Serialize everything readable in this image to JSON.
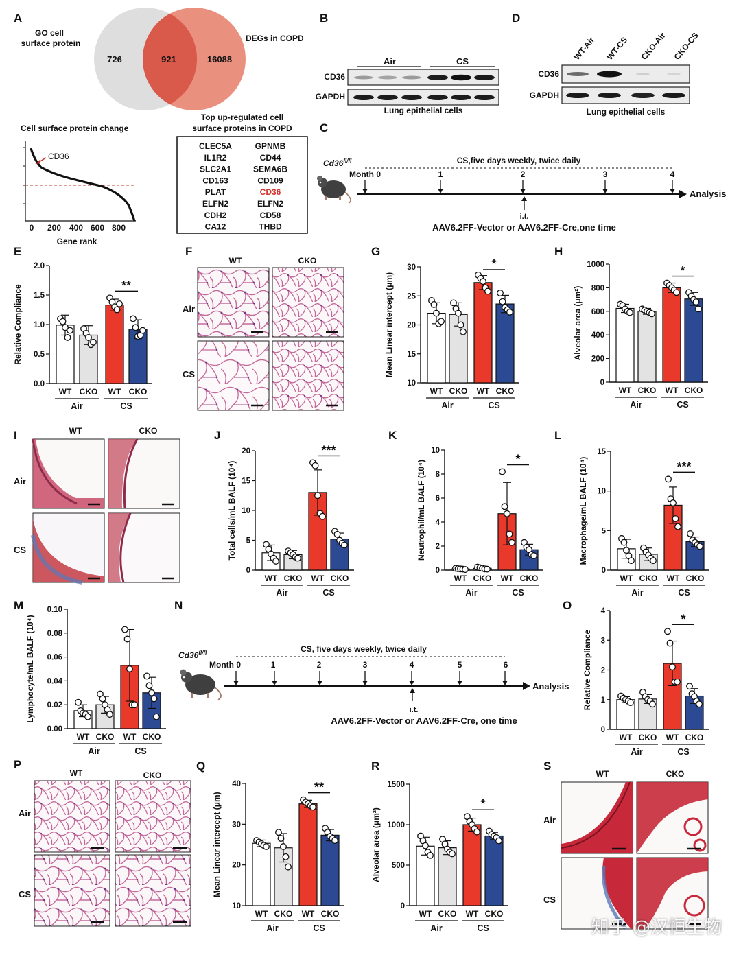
{
  "panel_letters": [
    "A",
    "B",
    "C",
    "D",
    "E",
    "F",
    "G",
    "H",
    "I",
    "J",
    "K",
    "L",
    "M",
    "N",
    "O",
    "P",
    "Q",
    "R",
    "S"
  ],
  "colors": {
    "wt_air": "#ffffff",
    "cko_air": "#e3e3e3",
    "wt_cs": "#e8392b",
    "cko_cs": "#2c4a94",
    "venn_left": "#dedede",
    "venn_right": "#e98a78",
    "venn_mid": "#d9594b",
    "he_pink": "#c46a9a",
    "masson_red": "#c53b44",
    "masson_blue": "#5a79b8"
  },
  "venn": {
    "left_label": "GO cell\nsurface protein",
    "right_label": "DEGs in COPD",
    "left_only": "726",
    "overlap": "921",
    "right_only": "16088"
  },
  "rank_plot": {
    "title": "Cell surface protein change",
    "callout": "CD36",
    "xlabel": "Gene rank",
    "xticks": [
      "0",
      "200",
      "400",
      "600",
      "800"
    ]
  },
  "gene_table": {
    "title_line1": "Top up-regulated cell",
    "title_line2": "surface proteins in COPD",
    "col1": [
      "CLEC5A",
      "IL1R2",
      "SLC2A1",
      "CD163",
      "PLAT",
      "ELFN2",
      "CDH2",
      "CA12"
    ],
    "col2": [
      "GPNMB",
      "CD44",
      "SEMA6B",
      "CD109",
      "CD36",
      "ELFN2",
      "CD58",
      "THBD"
    ],
    "highlight": "CD36"
  },
  "blot_b": {
    "groups": [
      "Air",
      "CS"
    ],
    "rows": [
      "CD36",
      "GAPDH"
    ],
    "caption": "Lung epithelial cells"
  },
  "blot_d": {
    "lanes": [
      "WT-Air",
      "WT-CS",
      "CKO-Air",
      "CKO-CS"
    ],
    "rows": [
      "CD36",
      "GAPDH"
    ],
    "caption": "Lung epithelial cells"
  },
  "timeline_c": {
    "strain": "Cd36",
    "strain_sup": "fl/fl",
    "title": "CS,five days weekly, twice daily",
    "start": "Month 0",
    "months": [
      "1",
      "2",
      "3",
      "4"
    ],
    "end": "Analysis",
    "route": "i.t.",
    "treatment": "AAV6.2FF-Vector or AAV6.2FF-Cre,one time"
  },
  "timeline_n": {
    "strain": "Cd36",
    "strain_sup": "fl/fl",
    "title": "CS, five days weekly, twice daily",
    "start": "Month 0",
    "months": [
      "1",
      "2",
      "3",
      "4",
      "5",
      "6"
    ],
    "end": "Analysis",
    "route": "i.t.",
    "treatment": "AAV6.2FF-Vector or AAV6.2FF-Cre, one time"
  },
  "micro_labels": {
    "cols": [
      "WT",
      "CKO"
    ],
    "rows": [
      "Air",
      "CS"
    ]
  },
  "group_axis": {
    "bars": [
      "WT",
      "CKO",
      "WT",
      "CKO"
    ],
    "groups": [
      "Air",
      "CS"
    ]
  },
  "chart_data": [
    {
      "panel": "E",
      "type": "bar",
      "ylabel": "Relative Compliance",
      "ylim": [
        0,
        2.0
      ],
      "yticks": [
        0.0,
        0.5,
        1.0,
        1.5,
        2.0
      ],
      "tick_decimals": 1,
      "categories": [
        "WT Air",
        "CKO Air",
        "WT CS",
        "CKO CS"
      ],
      "values": [
        0.99,
        0.82,
        1.33,
        0.92
      ],
      "errors": [
        0.17,
        0.16,
        0.1,
        0.16
      ],
      "points": [
        [
          1.1,
          1.05,
          0.95,
          0.78,
          0.9
        ],
        [
          0.93,
          0.85,
          0.78,
          0.66,
          0.7
        ],
        [
          1.45,
          1.38,
          1.3,
          1.25,
          1.35
        ],
        [
          1.1,
          0.95,
          0.8,
          0.82,
          0.9
        ]
      ],
      "significance": "**"
    },
    {
      "panel": "G",
      "type": "bar",
      "ylabel": "Mean Linear intercept (μm)",
      "ylim": [
        10,
        30
      ],
      "yticks": [
        10,
        15,
        20,
        25,
        30
      ],
      "tick_decimals": 0,
      "categories": [
        "WT Air",
        "CKO Air",
        "WT CS",
        "CKO CS"
      ],
      "values": [
        22.0,
        21.8,
        27.3,
        23.6
      ],
      "errors": [
        1.8,
        2.0,
        1.2,
        1.5
      ],
      "points": [
        [
          24.2,
          23.5,
          22.0,
          20.2,
          20.6
        ],
        [
          23.8,
          22.8,
          22.0,
          20.0,
          18.8
        ],
        [
          28.6,
          28.0,
          27.5,
          26.4,
          25.8
        ],
        [
          25.5,
          24.0,
          23.0,
          22.6,
          22.2
        ]
      ],
      "significance": "*"
    },
    {
      "panel": "H",
      "type": "bar",
      "ylabel": "Alveolar area (μm²)",
      "ylim": [
        0,
        1000
      ],
      "yticks": [
        0,
        200,
        400,
        600,
        800,
        1000
      ],
      "tick_decimals": 0,
      "categories": [
        "WT Air",
        "CKO Air",
        "WT CS",
        "CKO CS"
      ],
      "values": [
        625,
        600,
        800,
        705
      ],
      "errors": [
        35,
        25,
        40,
        55
      ],
      "points": [
        [
          660,
          650,
          620,
          600,
          590
        ],
        [
          620,
          610,
          600,
          590,
          580
        ],
        [
          840,
          820,
          800,
          780,
          760
        ],
        [
          760,
          730,
          700,
          680,
          620
        ]
      ],
      "significance": "*"
    },
    {
      "panel": "J",
      "type": "bar",
      "ylabel": "Total cells/mL BALF (10⁴)",
      "ylim": [
        0,
        20
      ],
      "yticks": [
        0,
        5,
        10,
        15,
        20
      ],
      "tick_decimals": 0,
      "categories": [
        "WT Air",
        "CKO Air",
        "WT CS",
        "CKO CS"
      ],
      "values": [
        2.9,
        2.6,
        13.0,
        5.2
      ],
      "errors": [
        1.3,
        0.7,
        3.8,
        1.0
      ],
      "points": [
        [
          4.3,
          3.5,
          2.7,
          2.0,
          1.5
        ],
        [
          3.2,
          2.9,
          2.6,
          2.2,
          2.0
        ],
        [
          18.0,
          17.5,
          12.5,
          9.5,
          9.0
        ],
        [
          6.5,
          6.0,
          5.0,
          4.5,
          4.2
        ]
      ],
      "significance": "***"
    },
    {
      "panel": "K",
      "type": "bar",
      "ylabel": "Neutrophil/mL BALF (10⁴)",
      "ylim": [
        0,
        10
      ],
      "yticks": [
        0,
        2,
        4,
        6,
        8,
        10
      ],
      "tick_decimals": 0,
      "categories": [
        "WT Air",
        "CKO Air",
        "WT CS",
        "CKO CS"
      ],
      "values": [
        0.1,
        0.15,
        4.7,
        1.7
      ],
      "errors": [
        0.05,
        0.08,
        2.6,
        0.45
      ],
      "points": [
        [
          0.15,
          0.12,
          0.1,
          0.08,
          0.05
        ],
        [
          0.25,
          0.2,
          0.15,
          0.1,
          0.08
        ],
        [
          8.2,
          5.3,
          4.7,
          3.0,
          2.3
        ],
        [
          2.3,
          1.9,
          1.7,
          1.3,
          1.2
        ]
      ],
      "significance": "*"
    },
    {
      "panel": "L",
      "type": "bar",
      "ylabel": "Macrophage/mL BALF (10⁴)",
      "ylim": [
        0,
        15
      ],
      "yticks": [
        0,
        5,
        10,
        15
      ],
      "tick_decimals": 0,
      "categories": [
        "WT Air",
        "CKO Air",
        "WT CS",
        "CKO CS"
      ],
      "values": [
        2.7,
        2.0,
        8.2,
        3.6
      ],
      "errors": [
        1.2,
        0.8,
        2.3,
        0.6
      ],
      "points": [
        [
          4.0,
          3.5,
          2.5,
          1.8,
          1.2
        ],
        [
          2.8,
          2.3,
          1.9,
          1.5,
          1.2
        ],
        [
          11.5,
          9.0,
          8.5,
          6.5,
          5.5
        ],
        [
          4.6,
          3.8,
          3.5,
          3.2,
          3.0
        ]
      ],
      "significance": "***"
    },
    {
      "panel": "M",
      "type": "bar",
      "ylabel": "Lymphocyte/mL BALF (10⁴)",
      "ylim": [
        0,
        0.1
      ],
      "yticks": [
        0.0,
        0.02,
        0.04,
        0.06,
        0.08,
        0.1
      ],
      "tick_decimals": 2,
      "categories": [
        "WT Air",
        "CKO Air",
        "WT CS",
        "CKO CS"
      ],
      "values": [
        0.015,
        0.02,
        0.053,
        0.03
      ],
      "errors": [
        0.005,
        0.007,
        0.03,
        0.013
      ],
      "points": [
        [
          0.022,
          0.015,
          0.013,
          0.012,
          0.01
        ],
        [
          0.029,
          0.025,
          0.02,
          0.016,
          0.012
        ],
        [
          0.083,
          0.075,
          0.05,
          0.02,
          0.02
        ],
        [
          0.044,
          0.036,
          0.03,
          0.025,
          0.01
        ]
      ],
      "significance": ""
    },
    {
      "panel": "O",
      "type": "bar",
      "ylabel": "Relative Compliance",
      "ylim": [
        0,
        4
      ],
      "yticks": [
        0,
        1,
        2,
        3,
        4
      ],
      "tick_decimals": 0,
      "categories": [
        "WT Air",
        "CKO Air",
        "WT CS",
        "CKO CS"
      ],
      "values": [
        1.0,
        1.02,
        2.22,
        1.12
      ],
      "errors": [
        0.1,
        0.15,
        0.75,
        0.25
      ],
      "points": [
        [
          1.12,
          1.05,
          1.0,
          0.95,
          0.9
        ],
        [
          1.25,
          1.1,
          1.0,
          0.95,
          0.85
        ],
        [
          3.3,
          2.9,
          2.1,
          1.6,
          1.6
        ],
        [
          1.45,
          1.2,
          1.1,
          0.95,
          0.85
        ]
      ],
      "significance": "*"
    },
    {
      "panel": "Q",
      "type": "bar",
      "ylabel": "Mean Linear intercept (μm)",
      "ylim": [
        10,
        40
      ],
      "yticks": [
        10,
        20,
        30,
        40
      ],
      "tick_decimals": 0,
      "categories": [
        "WT Air",
        "CKO Air",
        "WT CS",
        "CKO CS"
      ],
      "values": [
        25.3,
        24.2,
        35.0,
        27.3
      ],
      "errors": [
        0.8,
        3.5,
        0.9,
        1.4
      ],
      "points": [
        [
          26.0,
          25.6,
          25.2,
          24.8,
          24.5
        ],
        [
          28.0,
          26.5,
          24.5,
          22.0,
          19.5
        ],
        [
          36.0,
          35.4,
          35.0,
          34.5,
          34.2
        ],
        [
          29.0,
          28.0,
          27.0,
          26.5,
          26.0
        ]
      ],
      "significance": "**"
    },
    {
      "panel": "R",
      "type": "bar",
      "ylabel": "Alveolar area (μm²)",
      "ylim": [
        0,
        1500
      ],
      "yticks": [
        0,
        500,
        1000,
        1500
      ],
      "tick_decimals": 0,
      "categories": [
        "WT Air",
        "CKO Air",
        "WT CS",
        "CKO CS"
      ],
      "values": [
        735,
        715,
        1000,
        860
      ],
      "errors": [
        110,
        85,
        80,
        45
      ],
      "points": [
        [
          860,
          800,
          740,
          660,
          620
        ],
        [
          820,
          760,
          700,
          660,
          640
        ],
        [
          1100,
          1040,
          1000,
          950,
          910
        ],
        [
          920,
          880,
          860,
          840,
          800
        ]
      ],
      "significance": "*"
    }
  ],
  "watermark": "知乎 @汉恒生物"
}
